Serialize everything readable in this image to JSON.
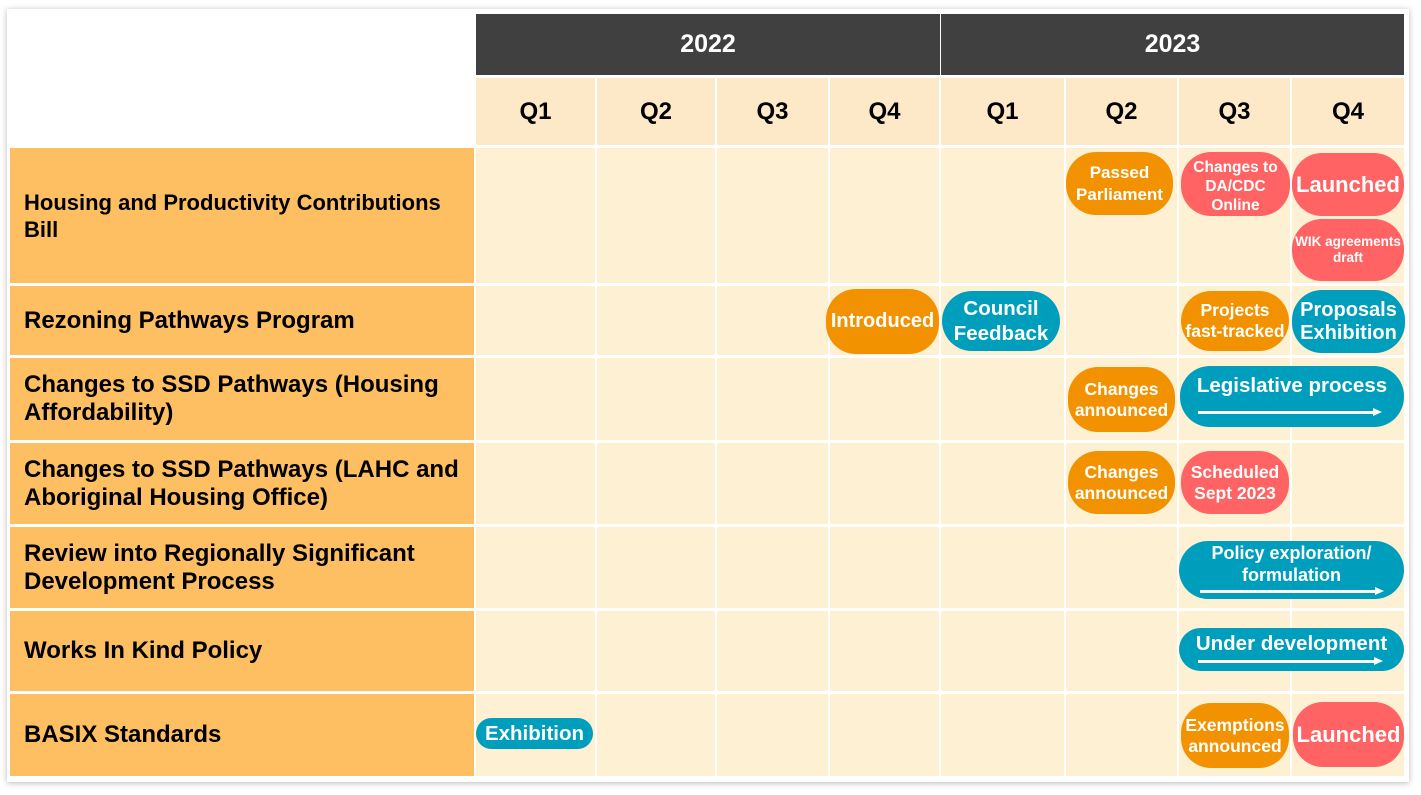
{
  "timeline": {
    "years": [
      "2022",
      "2023"
    ],
    "quarters": [
      "Q1",
      "Q2",
      "Q3",
      "Q4",
      "Q1",
      "Q2",
      "Q3",
      "Q4"
    ],
    "rows": [
      {
        "label": "Housing and Productivity Contributions Bill",
        "milestones": [
          {
            "text": "Passed\nParliament",
            "color": "#F39200"
          },
          {
            "text": "Changes to\nDA/CDC\nOnline",
            "color": "#FF6363"
          },
          {
            "text": "Launched",
            "color": "#FF6363"
          },
          {
            "text": "WIK agreements\ndraft",
            "color": "#FF6363"
          }
        ]
      },
      {
        "label": "Rezoning Pathways Program",
        "milestones": [
          {
            "text": "Introduced",
            "color": "#F39200"
          },
          {
            "text": "Council\nFeedback",
            "color": "#009EBD"
          },
          {
            "text": "Projects\nfast-tracked",
            "color": "#F39200"
          },
          {
            "text": "Proposals\nExhibition",
            "color": "#009EBD"
          }
        ]
      },
      {
        "label": "Changes to SSD Pathways (Housing Affordability)",
        "milestones": [
          {
            "text": "Changes\nannounced",
            "color": "#F39200"
          },
          {
            "text": "Legislative process",
            "color": "#009EBD"
          }
        ]
      },
      {
        "label": "Changes to SSD Pathways (LAHC and Aboriginal Housing Office)",
        "milestones": [
          {
            "text": "Changes\nannounced",
            "color": "#F39200"
          },
          {
            "text": "Scheduled\nSept 2023",
            "color": "#FF6363"
          }
        ]
      },
      {
        "label": "Review into Regionally Significant Development Process",
        "milestones": [
          {
            "text": "Policy exploration/\nformulation",
            "color": "#009EBD"
          }
        ]
      },
      {
        "label": "Works In Kind Policy",
        "milestones": [
          {
            "text": "Under development",
            "color": "#009EBD"
          }
        ]
      },
      {
        "label": "BASIX Standards",
        "milestones": [
          {
            "text": "Exhibition",
            "color": "#009EBD"
          },
          {
            "text": "Exemptions\nannounced",
            "color": "#F39200"
          },
          {
            "text": "Launched",
            "color": "#FF6363"
          }
        ]
      }
    ]
  },
  "colors": {
    "year_header": "#404040",
    "year_text": "#FFFFFF",
    "row_label_bg": "#FDBF62",
    "quarter_header_bg": "#FDE8C8",
    "cell_bg": "#FEF0D2",
    "label_text": "#000000"
  }
}
